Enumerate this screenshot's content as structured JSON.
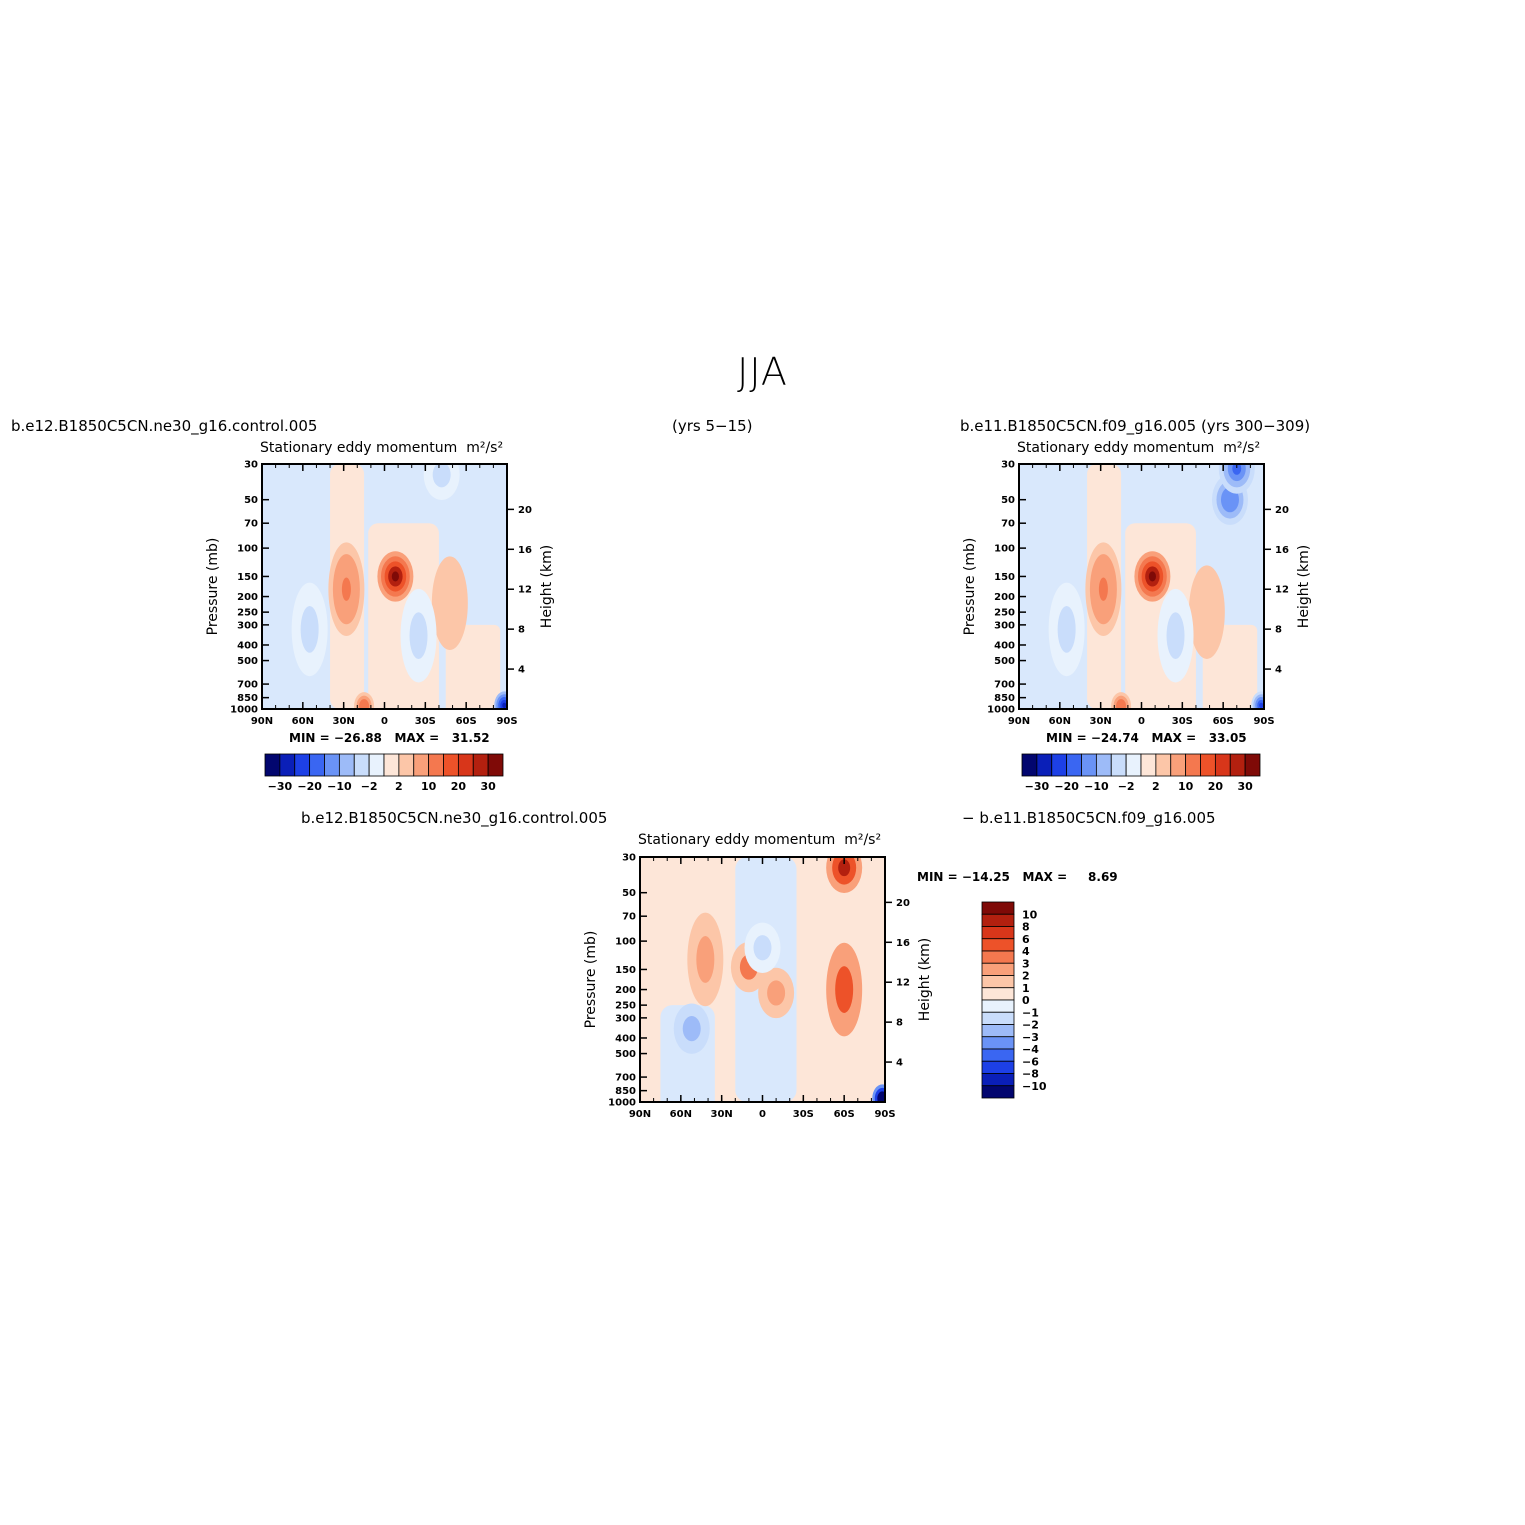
{
  "figure": {
    "title": "JJA",
    "case_left": "b.e12.B1850C5CN.ne30_g16.control.005",
    "years_left": "(yrs 5−15)",
    "case_right": "b.e11.B1850C5CN.f09_g16.005 (yrs 300−309)",
    "diff_left": "b.e12.B1850C5CN.ne30_g16.control.005",
    "diff_right": "− b.e11.B1850C5CN.f09_g16.005"
  },
  "chart_data": [
    {
      "type": "heatmap",
      "panel": "left",
      "title": "Stationary eddy momentum",
      "units": "m²/s²",
      "ylabel": "Pressure (mb)",
      "ylabel_right": "Height (km)",
      "x_ticks": [
        "90N",
        "60N",
        "30N",
        "0",
        "30S",
        "60S",
        "90S"
      ],
      "y_ticks": [
        "30",
        "50",
        "70",
        "100",
        "150",
        "200",
        "250",
        "300",
        "400",
        "500",
        "700",
        "850",
        "1000"
      ],
      "height_ticks": [
        "20",
        "16",
        "12",
        "8",
        "4"
      ],
      "min_label": "MIN =",
      "min": "−26.88",
      "max_label": "MAX =",
      "max": "31.52",
      "colorbar_labels": [
        "−30",
        "−20",
        "−10",
        "−2",
        "2",
        "10",
        "20",
        "30"
      ],
      "colorbar_colors": [
        "#02066f",
        "#0a1fb8",
        "#1d40e6",
        "#3a66f2",
        "#6a93f6",
        "#9dbbf8",
        "#c9ddfb",
        "#e8f2fd",
        "#fde6d8",
        "#fcc6a8",
        "#f9a07a",
        "#f4784f",
        "#ed5229",
        "#d8361a",
        "#b3200f",
        "#7f0a07"
      ],
      "features": [
        {
          "name": "subtropical-jet-core",
          "lat": -8,
          "p": 150,
          "value": 31.5
        },
        {
          "name": "nh-positive-lobe",
          "lat": 28,
          "p": 180,
          "value": 12
        },
        {
          "name": "sh-positive-lobe",
          "lat": -48,
          "p": 220,
          "value": 4
        },
        {
          "name": "nh-negative-lobe",
          "lat": 55,
          "p": 320,
          "value": -4
        },
        {
          "name": "tropical-negative-lobe",
          "lat": -25,
          "p": 350,
          "value": -4
        },
        {
          "name": "strat-negative",
          "lat": -42,
          "p": 35,
          "value": -3
        },
        {
          "name": "near-surface-positive",
          "lat": 15,
          "p": 960,
          "value": 14
        },
        {
          "name": "antarctic-surface-negative",
          "lat": -88,
          "p": 950,
          "value": -26.9
        }
      ]
    },
    {
      "type": "heatmap",
      "panel": "right",
      "title": "Stationary eddy momentum",
      "units": "m²/s²",
      "ylabel": "Pressure (mb)",
      "ylabel_right": "Height (km)",
      "x_ticks": [
        "90N",
        "60N",
        "30N",
        "0",
        "30S",
        "60S",
        "90S"
      ],
      "y_ticks": [
        "30",
        "50",
        "70",
        "100",
        "150",
        "200",
        "250",
        "300",
        "400",
        "500",
        "700",
        "850",
        "1000"
      ],
      "height_ticks": [
        "20",
        "16",
        "12",
        "8",
        "4"
      ],
      "min_label": "MIN =",
      "min": "−24.74",
      "max_label": "MAX =",
      "max": "33.05",
      "colorbar_labels": [
        "−30",
        "−20",
        "−10",
        "−2",
        "2",
        "10",
        "20",
        "30"
      ],
      "colorbar_colors": [
        "#02066f",
        "#0a1fb8",
        "#1d40e6",
        "#3a66f2",
        "#6a93f6",
        "#9dbbf8",
        "#c9ddfb",
        "#e8f2fd",
        "#fde6d8",
        "#fcc6a8",
        "#f9a07a",
        "#f4784f",
        "#ed5229",
        "#d8361a",
        "#b3200f",
        "#7f0a07"
      ],
      "features": [
        {
          "name": "subtropical-jet-core",
          "lat": -8,
          "p": 150,
          "value": 33.0
        },
        {
          "name": "nh-positive-lobe",
          "lat": 28,
          "p": 180,
          "value": 12
        },
        {
          "name": "sh-positive-lobe",
          "lat": -48,
          "p": 250,
          "value": 4
        },
        {
          "name": "nh-negative-lobe",
          "lat": 55,
          "p": 320,
          "value": -4
        },
        {
          "name": "tropical-negative-lobe",
          "lat": -25,
          "p": 350,
          "value": -4
        },
        {
          "name": "strat-negative",
          "lat": -65,
          "p": 50,
          "value": -14
        },
        {
          "name": "strat-negative-core",
          "lat": -70,
          "p": 32,
          "value": -20
        },
        {
          "name": "near-surface-positive",
          "lat": 15,
          "p": 960,
          "value": 14
        },
        {
          "name": "antarctic-surface-negative",
          "lat": -88,
          "p": 950,
          "value": -24.7
        }
      ]
    },
    {
      "type": "heatmap",
      "panel": "difference",
      "title": "Stationary eddy momentum",
      "units": "m²/s²",
      "ylabel": "Pressure (mb)",
      "ylabel_right": "Height (km)",
      "x_ticks": [
        "90N",
        "60N",
        "30N",
        "0",
        "30S",
        "60S",
        "90S"
      ],
      "y_ticks": [
        "30",
        "50",
        "70",
        "100",
        "150",
        "200",
        "250",
        "300",
        "400",
        "500",
        "700",
        "850",
        "1000"
      ],
      "height_ticks": [
        "20",
        "16",
        "12",
        "8",
        "4"
      ],
      "min_label": "MIN =",
      "min": "−14.25",
      "max_label": "MAX =",
      "max": "8.69",
      "colorbar_labels": [
        "10",
        "8",
        "6",
        "4",
        "3",
        "2",
        "1",
        "0",
        "−1",
        "−2",
        "−3",
        "−4",
        "−6",
        "−8",
        "−10"
      ],
      "colorbar_colors": [
        "#7f0a07",
        "#b3200f",
        "#d8361a",
        "#ed5229",
        "#f4784f",
        "#f9a07a",
        "#fcc6a8",
        "#fde6d8",
        "#e8f2fd",
        "#c9ddfb",
        "#9dbbf8",
        "#6a93f6",
        "#3a66f2",
        "#1d40e6",
        "#0a1fb8",
        "#02066f"
      ],
      "features": [
        {
          "name": "sh-strat-positive",
          "lat": -60,
          "p": 35,
          "value": 8.7
        },
        {
          "name": "sh-positive-column",
          "lat": -60,
          "p": 200,
          "value": 4
        },
        {
          "name": "nh-positive-lobe",
          "lat": 42,
          "p": 130,
          "value": 2
        },
        {
          "name": "tropical-positive",
          "lat": 10,
          "p": 145,
          "value": 3
        },
        {
          "name": "jet-positive",
          "lat": -10,
          "p": 210,
          "value": 2
        },
        {
          "name": "nh-negative",
          "lat": 52,
          "p": 350,
          "value": -3
        },
        {
          "name": "tropical-negative",
          "lat": 0,
          "p": 110,
          "value": -2
        },
        {
          "name": "antarctic-surface-negative",
          "lat": -88,
          "p": 950,
          "value": -14.25
        }
      ]
    }
  ]
}
